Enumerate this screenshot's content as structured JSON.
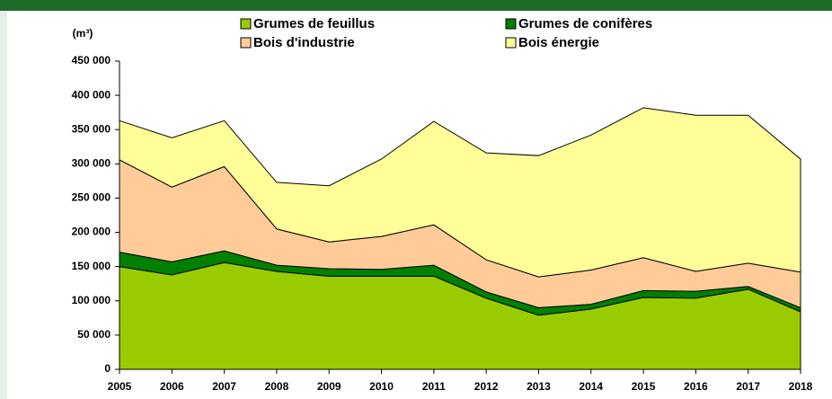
{
  "chart_data": {
    "type": "stacked-area",
    "y_axis_label": "(m³)",
    "categories": [
      "2005",
      "2006",
      "2007",
      "2008",
      "2009",
      "2010",
      "2011",
      "2012",
      "2013",
      "2014",
      "2015",
      "2016",
      "2017",
      "2018"
    ],
    "series": [
      {
        "name": "Grumes de feuillus",
        "color": "#99cc00",
        "values": [
          150000,
          138000,
          156000,
          143000,
          136000,
          136000,
          136000,
          104000,
          79000,
          88000,
          105000,
          104000,
          117000,
          84000
        ]
      },
      {
        "name": "Grumes de conifères",
        "color": "#008000",
        "values": [
          21000,
          19000,
          17000,
          9000,
          11000,
          10000,
          16000,
          9000,
          11000,
          7000,
          10000,
          10000,
          4000,
          6000
        ]
      },
      {
        "name": "Bois d'industrie",
        "color": "#ffcc99",
        "values": [
          135000,
          109000,
          123000,
          53000,
          39000,
          48000,
          59000,
          47000,
          45000,
          50000,
          48000,
          29000,
          34000,
          52000
        ]
      },
      {
        "name": "Bois énergie",
        "color": "#ffff99",
        "values": [
          57000,
          72000,
          67000,
          68000,
          82000,
          113000,
          151000,
          156000,
          177000,
          197000,
          219000,
          228000,
          216000,
          165000
        ]
      }
    ],
    "ylim": [
      0,
      450000
    ],
    "yticks": [
      0,
      {
        "value": 50000,
        "label": "50 000"
      },
      {
        "value": 100000,
        "label": "100 000"
      },
      {
        "value": 150000,
        "label": "150 000"
      },
      {
        "value": 200000,
        "label": "200 000"
      },
      {
        "value": 250000,
        "label": "250 000"
      },
      {
        "value": 300000,
        "label": "300 000"
      },
      {
        "value": 350000,
        "label": "350 000"
      },
      {
        "value": 400000,
        "label": "400 000"
      },
      {
        "value": 450000,
        "label": "450 000"
      }
    ]
  }
}
